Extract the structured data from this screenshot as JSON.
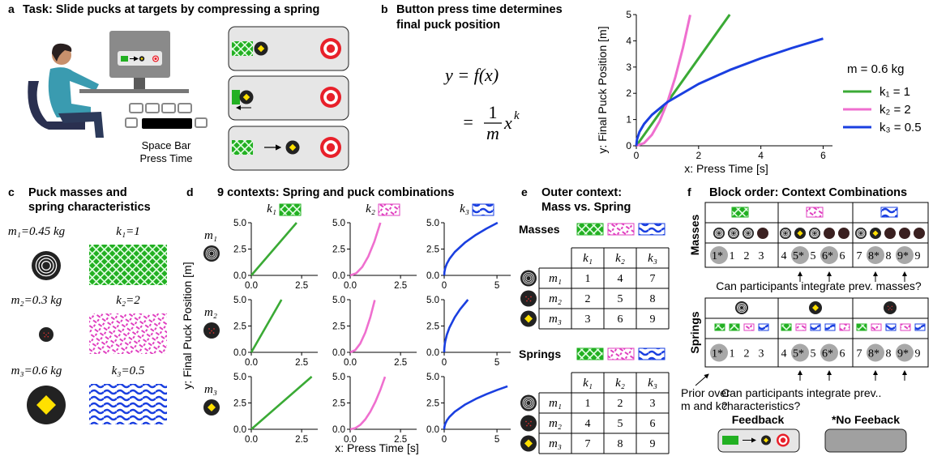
{
  "panel_a": {
    "label": "a",
    "title": "Task: Slide pucks at targets by compressing a spring",
    "caption": [
      "Space Bar",
      "Press Time"
    ]
  },
  "panel_b": {
    "label": "b",
    "title": [
      "Button press time determines",
      "final puck position"
    ],
    "equation": {
      "lhs": "y = f(x)",
      "equals": "=",
      "numerator": "1",
      "denominator": "m",
      "base": "x",
      "exponent": "k"
    }
  },
  "panel_c": {
    "label": "c",
    "title": [
      "Puck masses and",
      "spring characteristics"
    ],
    "masses": [
      "m₁=0.45 kg",
      "m₂=0.3 kg",
      "m₃=0.6 kg"
    ],
    "springs": [
      "k₁=1",
      "k₂=2",
      "k₃=0.5"
    ]
  },
  "panel_d": {
    "label": "d",
    "title": "9 contexts: Spring and puck combinations",
    "columns": [
      "k₁",
      "k₂",
      "k₃"
    ],
    "rows": [
      "m₁",
      "m₂",
      "m₃"
    ],
    "ylabel": "y: Final Puck Position [m]",
    "xlabel": "x: Press Time [s]"
  },
  "panel_e": {
    "label": "e",
    "title": [
      "Outer context:",
      "Mass vs. Spring"
    ],
    "masses": {
      "name": "Masses",
      "header": [
        "k₁",
        "k₂",
        "k₃"
      ],
      "rows": [
        "m₁",
        "m₂",
        "m₃"
      ],
      "cells": [
        [
          1,
          4,
          7
        ],
        [
          2,
          5,
          8
        ],
        [
          3,
          6,
          9
        ]
      ]
    },
    "springs": {
      "name": "Springs",
      "header": [
        "k₁",
        "k₂",
        "k₃"
      ],
      "rows": [
        "m₁",
        "m₂",
        "m₃"
      ],
      "cells": [
        [
          1,
          2,
          3
        ],
        [
          4,
          5,
          6
        ],
        [
          7,
          8,
          9
        ]
      ]
    }
  },
  "panel_f": {
    "label": "f",
    "title": "Block order: Context Combinations",
    "masses": {
      "name": "Masses",
      "blocks": [
        [
          "1*",
          "1",
          "2",
          "3"
        ],
        [
          "4",
          "5*",
          "5",
          "6*",
          "6"
        ],
        [
          "7",
          "8*",
          "8",
          "9*",
          "9"
        ]
      ]
    },
    "springs": {
      "name": "Springs",
      "blocks": [
        [
          "1*",
          "1",
          "2",
          "3"
        ],
        [
          "4",
          "5*",
          "5",
          "6*",
          "6"
        ],
        [
          "7",
          "8*",
          "8",
          "9*",
          "9"
        ]
      ]
    },
    "question_masses": "Can participants integrate prev. masses?",
    "question_prior": [
      "Prior over",
      "m and k?"
    ],
    "question_springs": [
      "Can participants integrate prev..",
      "characteristics?"
    ],
    "legend": {
      "feedback": "Feedback",
      "no_feedback": "*No Feeback"
    }
  },
  "chart_data": [
    {
      "type": "line",
      "xlabel": "x: Press Time [s]",
      "ylabel": "y: Final Puck Position [m]",
      "legend_title": "m = 0.6 kg",
      "xlim": [
        0,
        6.3
      ],
      "ylim": [
        0,
        5
      ],
      "xticks": [
        0,
        2,
        4,
        6
      ],
      "yticks": [
        0,
        1,
        2,
        3,
        4,
        5
      ],
      "series": [
        {
          "name": "k₁ = 1",
          "color": "#3aaa35",
          "x": [
            0,
            3
          ],
          "values": [
            0,
            5
          ]
        },
        {
          "name": "k₂ = 2",
          "color": "#ef6fcf",
          "x": [
            0,
            0.25,
            0.5,
            0.75,
            1,
            1.25,
            1.5,
            1.73
          ],
          "values": [
            0,
            0.104,
            0.417,
            0.938,
            1.667,
            2.604,
            3.75,
            4.988
          ]
        },
        {
          "name": "k₃ = 0.5",
          "color": "#1a3fe0",
          "x": [
            0,
            0.02,
            0.1,
            0.25,
            0.5,
            1,
            2,
            3,
            4,
            5,
            6
          ],
          "values": [
            0,
            0.236,
            0.527,
            0.833,
            1.179,
            1.667,
            2.357,
            2.887,
            3.333,
            3.727,
            4.082
          ]
        }
      ]
    },
    {
      "type": "line",
      "xlim": [
        0,
        3.3
      ],
      "ylim": [
        0,
        5
      ],
      "xticks": [
        {
          "value": 0,
          "label": "0.0"
        },
        {
          "value": 2.5,
          "label": "2.5"
        }
      ],
      "yticks": [
        {
          "value": 0,
          "label": "0.0"
        },
        {
          "value": 2.5,
          "label": "2.5"
        },
        {
          "value": 5,
          "label": "5.0"
        }
      ],
      "series": [
        {
          "color": "#3aaa35",
          "x": [
            0,
            2.25
          ],
          "values": [
            0,
            5
          ]
        }
      ]
    },
    {
      "type": "line",
      "xlim": [
        0,
        3.3
      ],
      "ylim": [
        0,
        5
      ],
      "xticks": [
        {
          "value": 0,
          "label": "0.0"
        },
        {
          "value": 2.5,
          "label": "2.5"
        }
      ],
      "yticks": [
        {
          "value": 0,
          "label": "0.0"
        },
        {
          "value": 2.5,
          "label": "2.5"
        },
        {
          "value": 5,
          "label": "5.0"
        }
      ],
      "series": [
        {
          "color": "#ef6fcf",
          "x": [
            0,
            0.3,
            0.6,
            0.9,
            1.2,
            1.5
          ],
          "values": [
            0,
            0.2,
            0.8,
            1.8,
            3.2,
            5
          ]
        }
      ]
    },
    {
      "type": "line",
      "xlim": [
        0,
        6.3
      ],
      "ylim": [
        0,
        5
      ],
      "xticks": [
        0,
        5
      ],
      "yticks": [
        {
          "value": 0,
          "label": "0.0"
        },
        {
          "value": 2.5,
          "label": "2.5"
        },
        {
          "value": 5,
          "label": "5.0"
        }
      ],
      "series": [
        {
          "color": "#1a3fe0",
          "x": [
            0,
            0.02,
            0.1,
            0.25,
            0.5,
            1,
            2,
            3,
            4,
            5.06
          ],
          "values": [
            0,
            0.314,
            0.703,
            1.111,
            1.571,
            2.222,
            3.143,
            3.849,
            4.444,
            4.999
          ]
        }
      ]
    },
    {
      "type": "line",
      "xlim": [
        0,
        3.3
      ],
      "ylim": [
        0,
        5
      ],
      "xticks": [
        {
          "value": 0,
          "label": "0.0"
        },
        {
          "value": 2.5,
          "label": "2.5"
        }
      ],
      "yticks": [
        {
          "value": 0,
          "label": "0.0"
        },
        {
          "value": 2.5,
          "label": "2.5"
        },
        {
          "value": 5,
          "label": "5.0"
        }
      ],
      "series": [
        {
          "color": "#3aaa35",
          "x": [
            0,
            1.5
          ],
          "values": [
            0,
            5
          ]
        }
      ]
    },
    {
      "type": "line",
      "xlim": [
        0,
        3.3
      ],
      "ylim": [
        0,
        5
      ],
      "xticks": [
        {
          "value": 0,
          "label": "0.0"
        },
        {
          "value": 2.5,
          "label": "2.5"
        }
      ],
      "yticks": [
        {
          "value": 0,
          "label": "0.0"
        },
        {
          "value": 2.5,
          "label": "2.5"
        },
        {
          "value": 5,
          "label": "5.0"
        }
      ],
      "series": [
        {
          "color": "#ef6fcf",
          "x": [
            0,
            0.25,
            0.5,
            0.75,
            1,
            1.22
          ],
          "values": [
            0,
            0.208,
            0.833,
            1.875,
            3.333,
            4.961
          ]
        }
      ]
    },
    {
      "type": "line",
      "xlim": [
        0,
        6.3
      ],
      "ylim": [
        0,
        5
      ],
      "xticks": [
        0,
        5
      ],
      "yticks": [
        {
          "value": 0,
          "label": "0.0"
        },
        {
          "value": 2.5,
          "label": "2.5"
        },
        {
          "value": 5,
          "label": "5.0"
        }
      ],
      "series": [
        {
          "color": "#1a3fe0",
          "x": [
            0,
            0.01,
            0.05,
            0.1,
            0.25,
            0.5,
            1,
            1.5,
            2.25
          ],
          "values": [
            0,
            0.333,
            0.745,
            1.054,
            1.667,
            2.357,
            3.333,
            4.082,
            5
          ]
        }
      ]
    },
    {
      "type": "line",
      "xlim": [
        0,
        3.3
      ],
      "ylim": [
        0,
        5
      ],
      "xticks": [
        {
          "value": 0,
          "label": "0.0"
        },
        {
          "value": 2.5,
          "label": "2.5"
        }
      ],
      "yticks": [
        {
          "value": 0,
          "label": "0.0"
        },
        {
          "value": 2.5,
          "label": "2.5"
        },
        {
          "value": 5,
          "label": "5.0"
        }
      ],
      "series": [
        {
          "color": "#3aaa35",
          "x": [
            0,
            3
          ],
          "values": [
            0,
            5
          ]
        }
      ]
    },
    {
      "type": "line",
      "xlim": [
        0,
        3.3
      ],
      "ylim": [
        0,
        5
      ],
      "xticks": [
        {
          "value": 0,
          "label": "0.0"
        },
        {
          "value": 2.5,
          "label": "2.5"
        }
      ],
      "yticks": [
        {
          "value": 0,
          "label": "0.0"
        },
        {
          "value": 2.5,
          "label": "2.5"
        },
        {
          "value": 5,
          "label": "5.0"
        }
      ],
      "series": [
        {
          "color": "#ef6fcf",
          "x": [
            0,
            0.25,
            0.5,
            0.75,
            1,
            1.25,
            1.5,
            1.73
          ],
          "values": [
            0,
            0.104,
            0.417,
            0.938,
            1.667,
            2.604,
            3.75,
            4.988
          ]
        }
      ]
    },
    {
      "type": "line",
      "xlim": [
        0,
        6.3
      ],
      "ylim": [
        0,
        5
      ],
      "xticks": [
        0,
        5
      ],
      "yticks": [
        {
          "value": 0,
          "label": "0.0"
        },
        {
          "value": 2.5,
          "label": "2.5"
        },
        {
          "value": 5,
          "label": "5.0"
        }
      ],
      "series": [
        {
          "color": "#1a3fe0",
          "x": [
            0,
            0.02,
            0.1,
            0.25,
            0.5,
            1,
            2,
            3,
            4,
            5,
            6
          ],
          "values": [
            0,
            0.236,
            0.527,
            0.833,
            1.179,
            1.667,
            2.357,
            2.887,
            3.333,
            3.727,
            4.082
          ]
        }
      ]
    }
  ]
}
